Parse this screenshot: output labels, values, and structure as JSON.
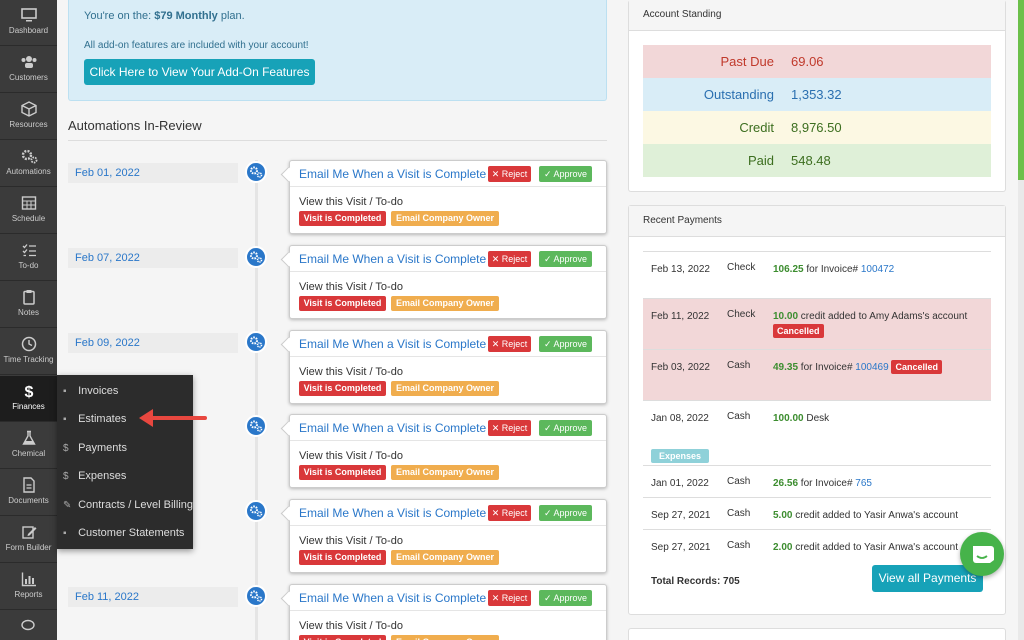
{
  "sidebar": {
    "items": [
      {
        "label": "Dashboard",
        "icon": "monitor-icon"
      },
      {
        "label": "Customers",
        "icon": "users-icon"
      },
      {
        "label": "Resources",
        "icon": "cube-icon"
      },
      {
        "label": "Automations",
        "icon": "gears-icon"
      },
      {
        "label": "Schedule",
        "icon": "calendar-icon"
      },
      {
        "label": "To-do",
        "icon": "checklist-icon"
      },
      {
        "label": "Notes",
        "icon": "clipboard-icon"
      },
      {
        "label": "Time Tracking",
        "icon": "clock-icon"
      },
      {
        "label": "Finances",
        "icon": "dollar-icon"
      },
      {
        "label": "Chemical",
        "icon": "flask-icon"
      },
      {
        "label": "Documents",
        "icon": "document-icon"
      },
      {
        "label": "Form Builder",
        "icon": "form-edit-icon"
      },
      {
        "label": "Reports",
        "icon": "bar-chart-icon"
      },
      {
        "label": "",
        "icon": "chat-bubbles-icon"
      }
    ]
  },
  "flyout": {
    "items": [
      {
        "label": "Invoices",
        "icon": "file-icon"
      },
      {
        "label": "Estimates",
        "icon": "file-icon"
      },
      {
        "label": "Payments",
        "icon": "dollar-icon"
      },
      {
        "label": "Expenses",
        "icon": "dollar-icon"
      },
      {
        "label": "Contracts / Level Billing",
        "icon": "edit-icon"
      },
      {
        "label": "Customer Statements",
        "icon": "file-icon"
      }
    ]
  },
  "plan": {
    "prefix": "You're on the: ",
    "name": "$79 Monthly",
    "suffix": " plan.",
    "addons_note": "All add-on features are included with your account!",
    "button_label": "Click Here to View Your Add-On Features"
  },
  "automations": {
    "title": "Automations In-Review",
    "entries": [
      {
        "date": "Feb 01, 2022",
        "title": "Email Me When a Visit is Complete",
        "reject": "✕ Reject",
        "approve": "✓ Approve",
        "view": "View this Visit / To-do",
        "badge1": "Visit is Completed",
        "badge2": "Email Company Owner"
      },
      {
        "date": "Feb 07, 2022",
        "title": "Email Me When a Visit is Complete",
        "reject": "✕ Reject",
        "approve": "✓ Approve",
        "view": "View this Visit / To-do",
        "badge1": "Visit is Completed",
        "badge2": "Email Company Owner"
      },
      {
        "date": "Feb 09, 2022",
        "title": "Email Me When a Visit is Complete",
        "reject": "✕ Reject",
        "approve": "✓ Approve",
        "view": "View this Visit / To-do",
        "badge1": "Visit is Completed",
        "badge2": "Email Company Owner"
      },
      {
        "date": "",
        "title": "Email Me When a Visit is Complete",
        "reject": "✕ Reject",
        "approve": "✓ Approve",
        "view": "View this Visit / To-do",
        "badge1": "Visit is Completed",
        "badge2": "Email Company Owner"
      },
      {
        "date": "",
        "title": "Email Me When a Visit is Complete",
        "reject": "✕ Reject",
        "approve": "✓ Approve",
        "view": "View this Visit / To-do",
        "badge1": "Visit is Completed",
        "badge2": "Email Company Owner"
      },
      {
        "date": "Feb 11, 2022",
        "title": "Email Me When a Visit is Complete",
        "reject": "✕ Reject",
        "approve": "✓ Approve",
        "view": "View this Visit / To-do",
        "badge1": "Visit is Completed",
        "badge2": "Email Company Owner"
      }
    ]
  },
  "standing": {
    "title": "Account Standing",
    "rows": [
      {
        "label": "Past Due",
        "value": "69.06",
        "bg": "#f2d7d8",
        "color": "#c0392b"
      },
      {
        "label": "Outstanding",
        "value": "1,353.32",
        "bg": "#d9edf7",
        "color": "#2a6fb0"
      },
      {
        "label": "Credit",
        "value": "8,976.50",
        "bg": "#fcf8e3",
        "color": "#3c6e1f"
      },
      {
        "label": "Paid",
        "value": "548.48",
        "bg": "#dff0d8",
        "color": "#3c6e1f"
      }
    ]
  },
  "payments": {
    "title": "Recent Payments",
    "rows": [
      {
        "date": "Feb 13, 2022",
        "method": "Check",
        "amount": "106.25",
        "text": " for Invoice# ",
        "link": "100472",
        "tail": "",
        "tag": "",
        "tag2": ""
      },
      {
        "date": "Feb 11, 2022",
        "method": "Check",
        "amount": "10.00",
        "text": " credit added to Amy Adams's account",
        "link": "",
        "tail": "",
        "tag": "Cancelled",
        "tag2": ""
      },
      {
        "date": "Feb 03, 2022",
        "method": "Cash",
        "amount": "49.35",
        "text": " for Invoice# ",
        "link": "100469",
        "tail": "",
        "tag": "Cancelled",
        "tag2": ""
      },
      {
        "date": "Jan 08, 2022",
        "method": "Cash",
        "amount": "100.00",
        "text": " Desk",
        "link": "",
        "tail": "",
        "tag": "",
        "tag2": "Expenses"
      },
      {
        "date": "Jan 01, 2022",
        "method": "Cash",
        "amount": "26.56",
        "text": " for Invoice# ",
        "link": "765",
        "tail": "",
        "tag": "",
        "tag2": ""
      },
      {
        "date": "Sep 27, 2021",
        "method": "Cash",
        "amount": "5.00",
        "text": " credit added to Yasir Anwa's account",
        "link": "",
        "tail": "",
        "tag": "",
        "tag2": ""
      },
      {
        "date": "Sep 27, 2021",
        "method": "Cash",
        "amount": "2.00",
        "text": " credit added to Yasir Anwa's account",
        "link": "",
        "tail": "",
        "tag": "",
        "tag2": ""
      }
    ],
    "total": "Total Records: 705",
    "view_all": "View all Payments"
  },
  "colors": {
    "accent": "#17a2b8",
    "link": "#2a77c9",
    "sidebar": "#3b3b3b"
  }
}
